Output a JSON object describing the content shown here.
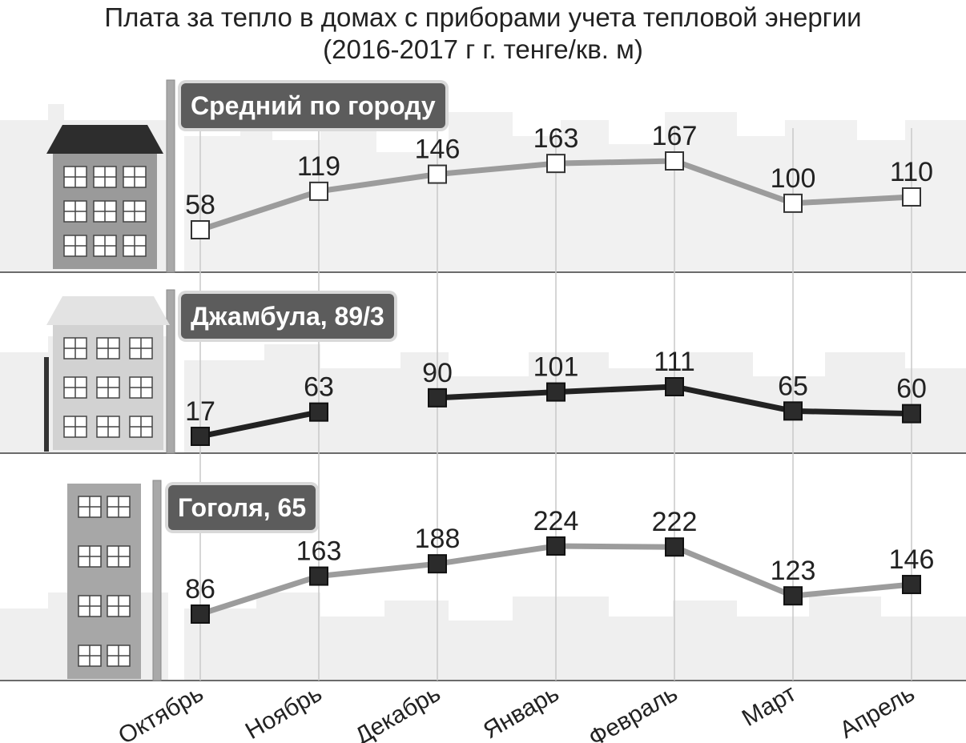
{
  "title": {
    "line1": "Плата за тепло в домах с приборами учета тепловой энергии",
    "line2": "(2016-2017 г г. тенге/кв. м)"
  },
  "colors": {
    "line_average": "#9c9c9c",
    "line_dzhambula": "#222222",
    "line_gogolya": "#9c9c9c",
    "marker_fill_dark": "#2b2b2b",
    "badge_bg": "#5c5c5c"
  },
  "chart_data": [
    {
      "type": "line",
      "categories": [
        "Октябрь",
        "Ноябрь",
        "Декабрь",
        "Январь",
        "Февраль",
        "Март",
        "Апрель"
      ],
      "series": [
        {
          "name": "Средний по городу",
          "values": [
            58,
            119,
            146,
            163,
            167,
            100,
            110
          ]
        }
      ],
      "marker": "square-hollow"
    },
    {
      "type": "line",
      "categories": [
        "Октябрь",
        "Ноябрь",
        "Декабрь",
        "Январь",
        "Февраль",
        "Март",
        "Апрель"
      ],
      "series": [
        {
          "name": "Джамбула, 89/3",
          "values": [
            17,
            63,
            90,
            101,
            111,
            65,
            60
          ]
        }
      ],
      "marker": "square-filled",
      "gap_after_index": 1
    },
    {
      "type": "line",
      "categories": [
        "Октябрь",
        "Ноябрь",
        "Декабрь",
        "Январь",
        "Февраль",
        "Март",
        "Апрель"
      ],
      "series": [
        {
          "name": "Гоголя, 65",
          "values": [
            86,
            163,
            188,
            224,
            222,
            123,
            146
          ]
        }
      ],
      "marker": "square-filled"
    }
  ]
}
